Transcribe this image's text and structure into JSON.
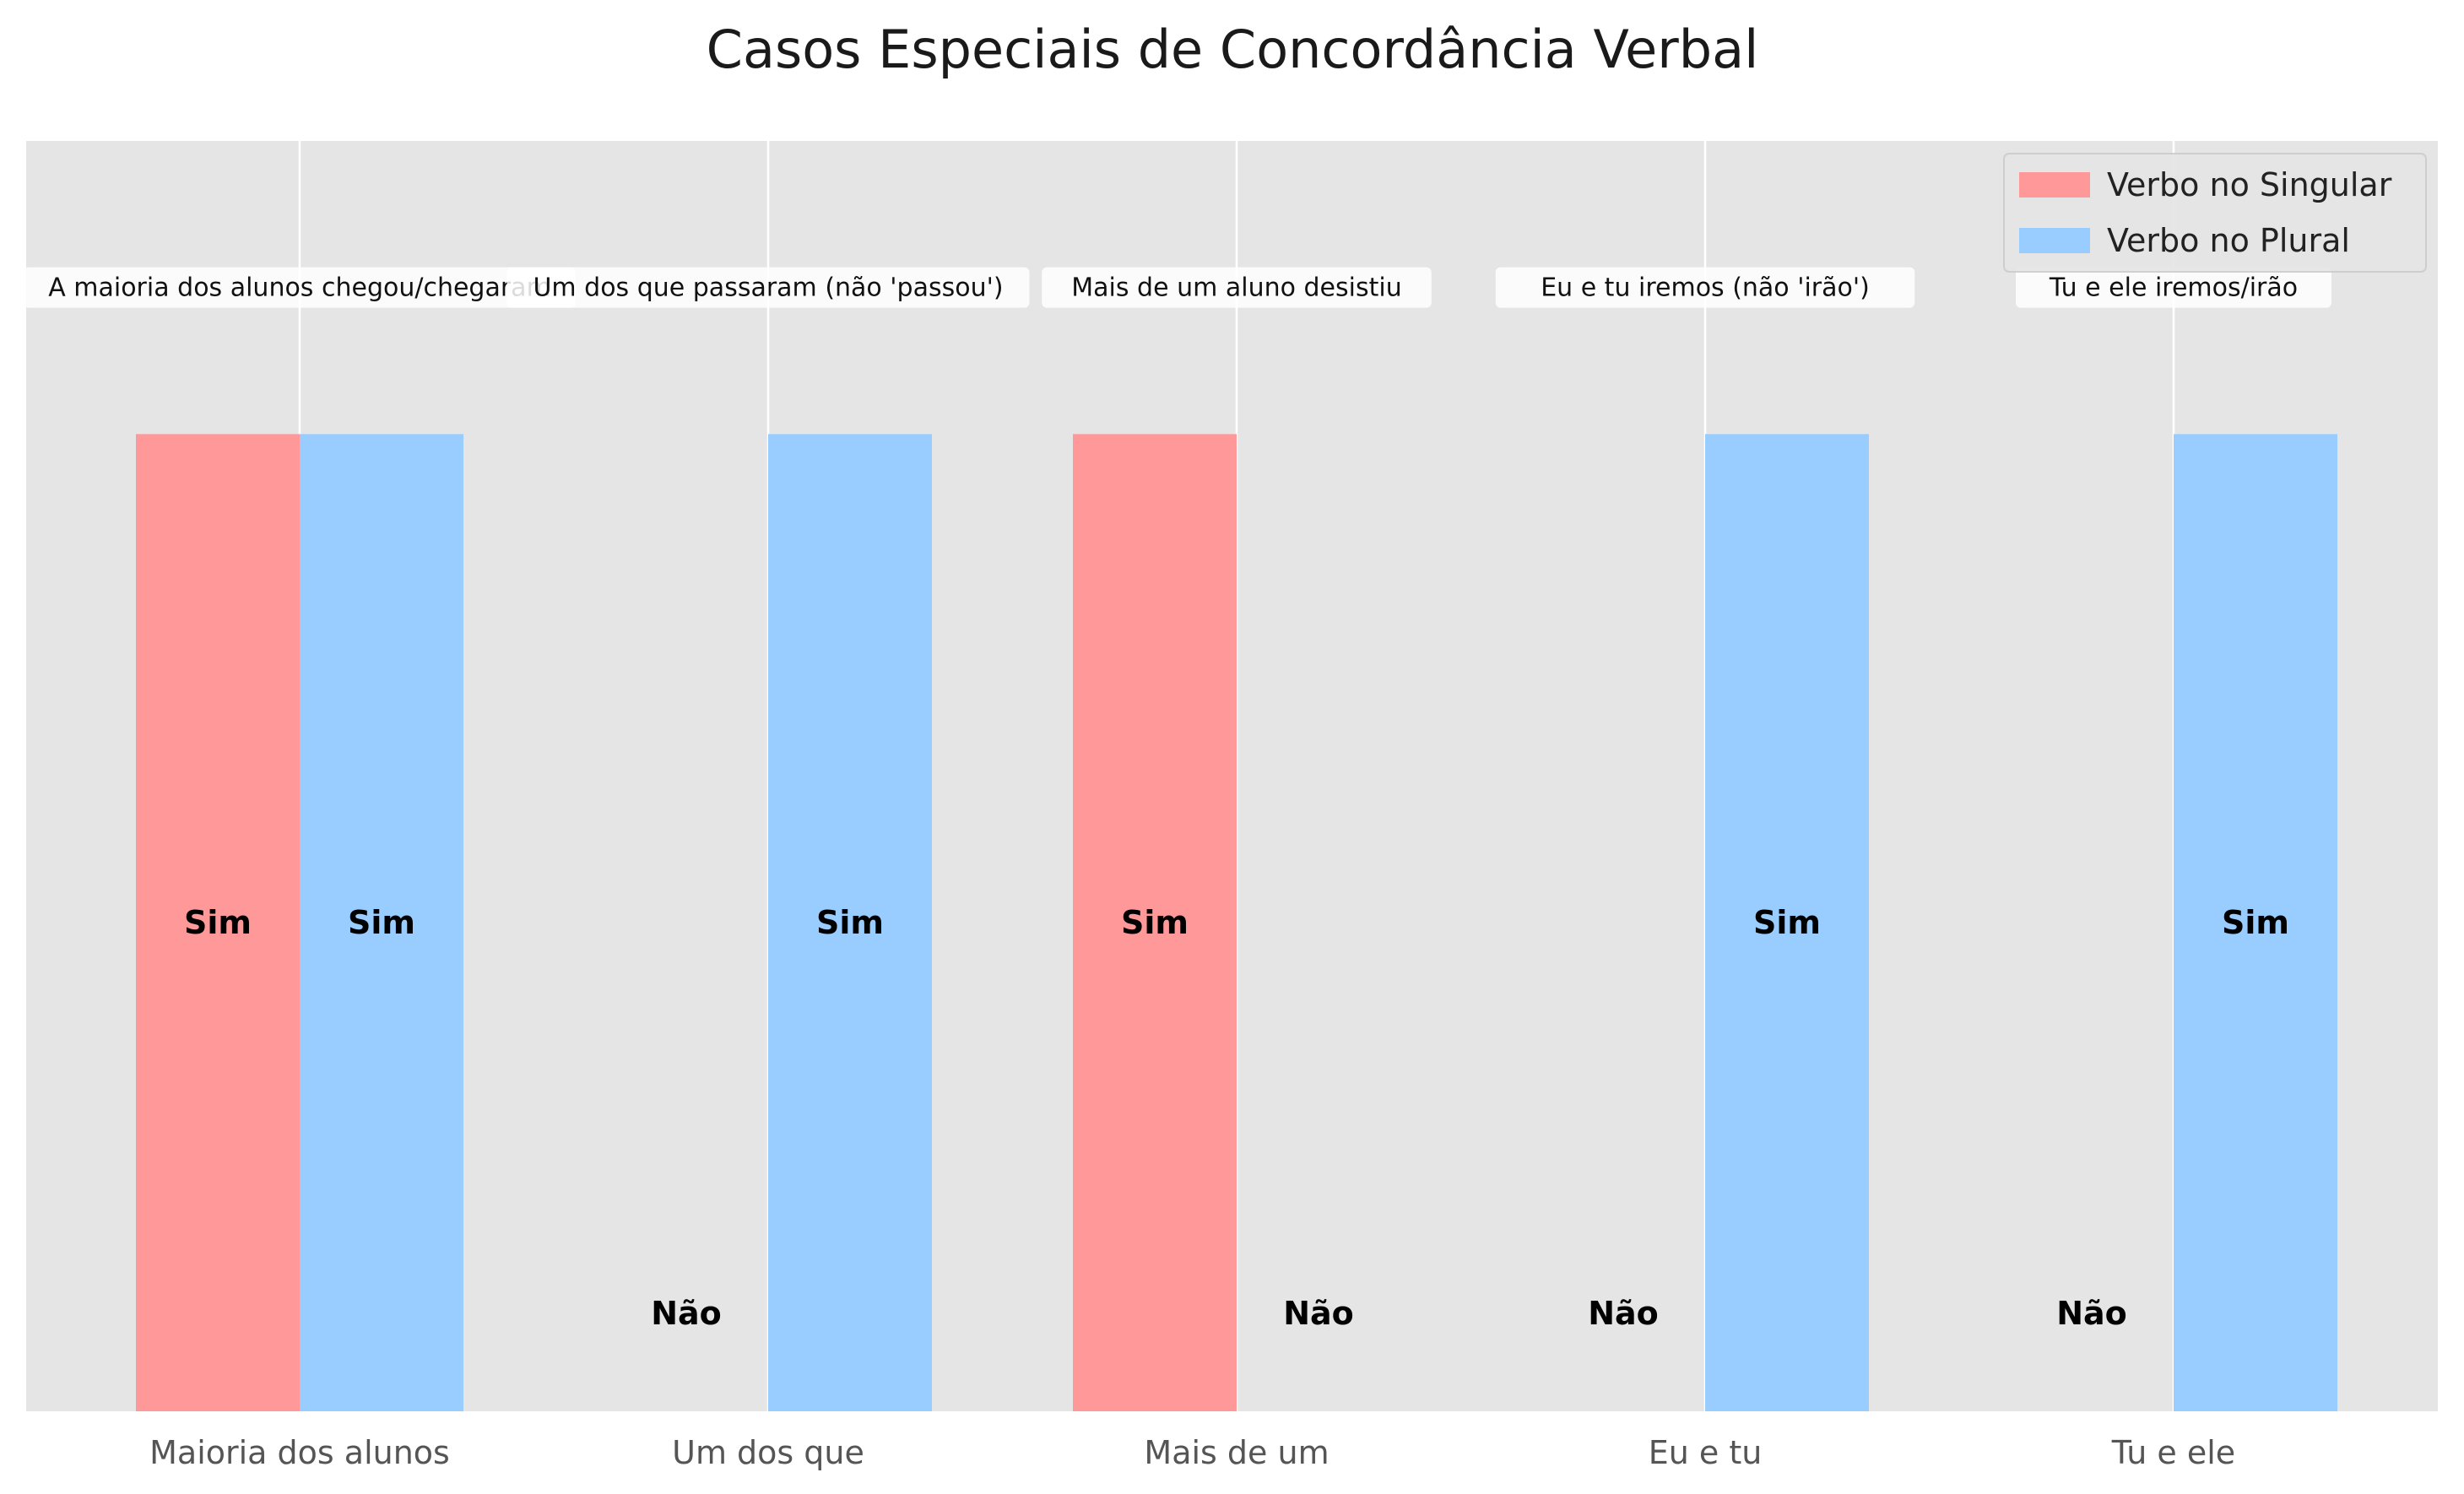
{
  "chart_data": {
    "type": "bar",
    "title": "Casos Especiais de Concordância Verbal",
    "xlabel": "",
    "ylabel": "",
    "categories": [
      "Maioria dos alunos",
      "Um dos que",
      "Mais de um",
      "Eu e tu",
      "Tu e ele"
    ],
    "ylim": [
      0,
      1.3
    ],
    "grid": "x",
    "legend_position": "top-right",
    "series": [
      {
        "name": "Verbo no Singular",
        "color": "#ff9999",
        "values": [
          1,
          0,
          1,
          0,
          0
        ],
        "labels": [
          "Sim",
          "Não",
          "Sim",
          "Não",
          "Não"
        ]
      },
      {
        "name": "Verbo no Plural",
        "color": "#99ccff",
        "values": [
          1,
          1,
          0,
          1,
          1
        ],
        "labels": [
          "Sim",
          "Sim",
          "Não",
          "Sim",
          "Sim"
        ]
      }
    ],
    "annotations": [
      "A maioria dos alunos chegou/chegaram",
      "Um dos que passaram (não 'passou')",
      "Mais de um aluno desistiu",
      "Eu e tu iremos (não 'irão')",
      "Tu e ele iremos/irão"
    ]
  }
}
